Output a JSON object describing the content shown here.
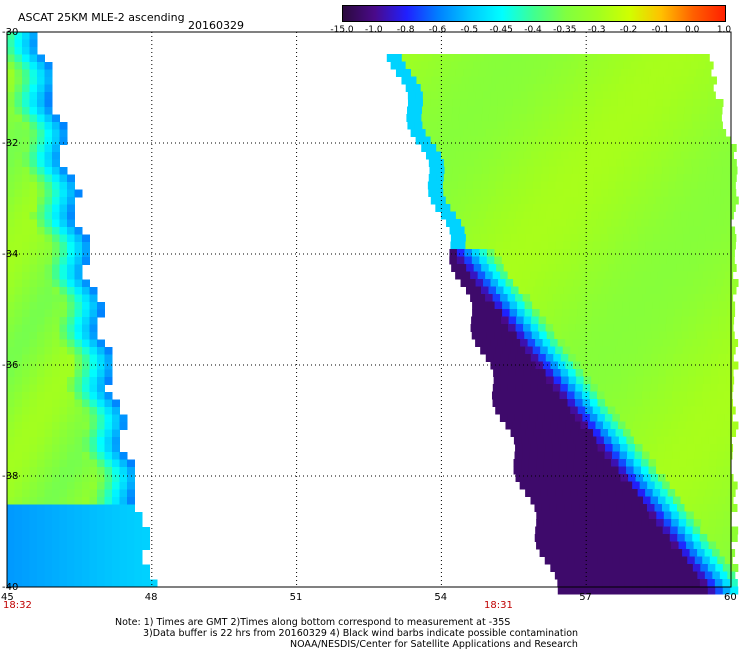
{
  "title": "ASCAT 25KM MLE-2 ascending",
  "date": "20160329",
  "colorbar": {
    "labels": [
      "-15.0",
      "-1.0",
      "-0.8",
      "-0.6",
      "-0.5",
      "-0.45",
      "-0.4",
      "-0.35",
      "-0.3",
      "-0.2",
      "-0.1",
      "0.0",
      "1.0"
    ],
    "colors": [
      "#2b0a3d",
      "#4a0a8a",
      "#2020ff",
      "#0080ff",
      "#00c8ff",
      "#00ffff",
      "#40ff90",
      "#80ff40",
      "#a0ff20",
      "#d0ff00",
      "#ffc000",
      "#ff6000",
      "#ff2000"
    ]
  },
  "axes": {
    "lon_ticks": [
      "45",
      "48",
      "51",
      "54",
      "57",
      "60"
    ],
    "lat_ticks": [
      "-30",
      "-32",
      "-34",
      "-36",
      "-38",
      "-40"
    ]
  },
  "pass_times": [
    "18:32",
    "18:31"
  ],
  "notes": [
    "Note: 1) Times are GMT 2)Times along bottom correspond to measurement at -35S",
    "3)Data buffer is 22 hrs from 20160329 4) Black wind barbs indicate possible contamination",
    "NOAA/NESDIS/Center for Satellite Applications and Research"
  ]
}
